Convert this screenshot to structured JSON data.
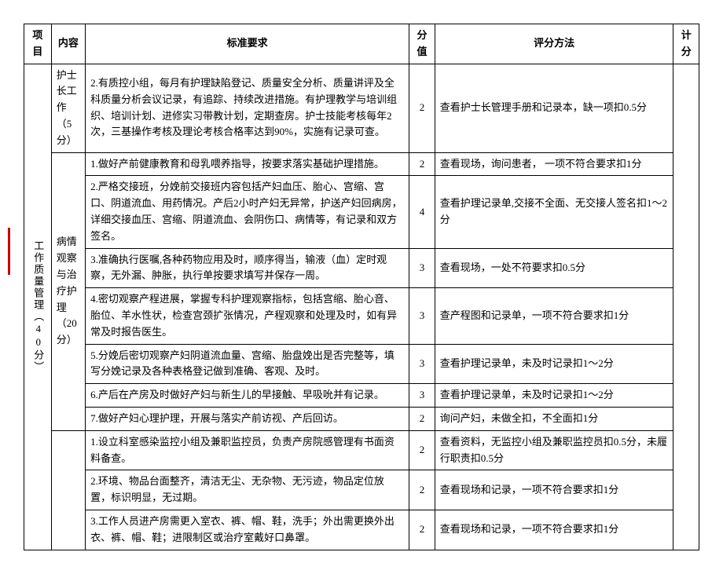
{
  "headers": {
    "project": "项目",
    "content": "内容",
    "requirement": "标准要求",
    "score": "分值",
    "method": "评分方法",
    "total": "计分"
  },
  "section": {
    "project_label": "工作质量管理（40分）",
    "group1": {
      "label": "护士长工作（5分）",
      "row1": {
        "req": "2.有质控小组，每月有护理缺陷登记、质量安全分析、质量讲评及全科质量分析会议记录，有追踪、持续改进措施。有护理教学与培训组织、培训计划、进修实习带教计划，定期查房。护士技能考核每年2次，三基操作考核及理论考核合格率达到90%，实施有记录可查。",
        "score": "2",
        "method": "查看护士长管理手册和记录本，缺一项扣0.5分"
      }
    },
    "group2": {
      "label": "病情观察与治疗护理（20分）",
      "row1": {
        "req": "1.做好产前健康教育和母乳喂养指导，按要求落实基础护理措施。",
        "score": "2",
        "method": "查看现场，询问患者，  一项不符合要求扣1分"
      },
      "row2": {
        "req": "2.严格交接班，分娩前交接班内容包括产妇血压、胎心、宫缩、宫口、阴道流血、用药情况。产后2小时产妇无异常，护送产妇回病房，详细交接血压、宫缩、阴道流血、会阴伤口、病情等，有记录和双方签名。",
        "score": "4",
        "method": "查看护理记录单,交接不全面、无交接人签名扣1～2分"
      },
      "row3": {
        "req": "3.准确执行医嘱,各种药物应用及时，顺序得当，输液（血）定时观察，无外漏、肿胀，执行单按要求填写并保存一周。",
        "score": "3",
        "method": "查看现场，一处不符要求扣0.5分"
      },
      "row4": {
        "req": "4.密切观察产程进展，掌握专科护理观察指标，包括宫缩、胎心音、胎位、羊水性状，检查宫颈扩张情况，产程观察和处理及时，如有异常及时报告医生。",
        "score": "3",
        "method": "查产程图和记录单，一项不符合要求扣1分"
      },
      "row5": {
        "req": "5.分娩后密切观察产妇阴道流血量、宫缩、胎盘娩出是否完整等，填写分娩记录及各种表格登记做到准确、客观、及时。",
        "score": "3",
        "method": "查看护理记录单，未及时记录扣1～2分"
      },
      "row6": {
        "req": "6.产后在产房及时做好产妇与新生儿的早接触、早吸吮并有记录。",
        "score": "3",
        "method": "查看护理记录单，未及时记录扣1～2分"
      },
      "row7": {
        "req": "7.做好产妇心理护理，开展与落实产前访视、产后回访。",
        "score": "2",
        "method": "询问产妇，未做全扣，不全面扣1分"
      }
    },
    "group3": {
      "row1": {
        "req": "1.设立科室感染监控小组及兼职监控员，负责产房院感管理有书面资料备查。",
        "score": "2",
        "method": "查看资料，无监控小组及兼职监控员扣0.5分，未履行职责扣0.5分"
      },
      "row2": {
        "req": "2.环境、物品台面整齐，清洁无尘、无杂物、无污迹，物品定位放置，标识明显，无过期。",
        "score": "2",
        "method": "查看现场和记录，一项不符合要求扣1分"
      },
      "row3": {
        "req": "3.工作人员进产房需更入室衣、裤、帽、鞋，洗手；外出需更换外出衣、裤、帽、鞋；进限制区或治疗室戴好口鼻罩。",
        "score": "2",
        "method": "查看现场和记录，一项不符合要求扣1分"
      }
    }
  }
}
